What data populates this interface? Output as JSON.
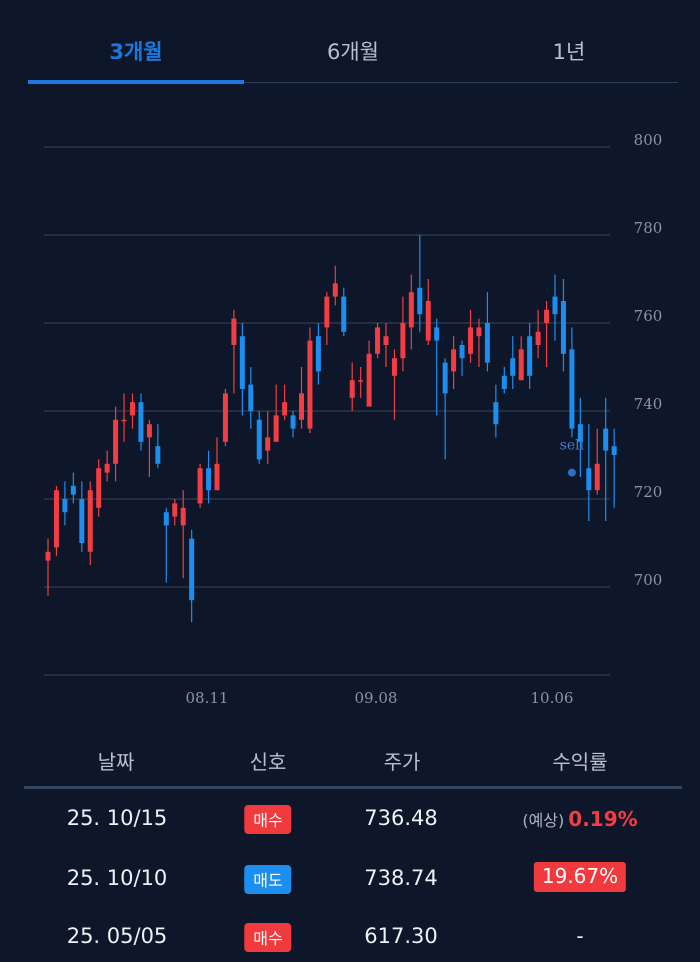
{
  "tabs": [
    {
      "label": "3개월",
      "active": true
    },
    {
      "label": "6개월",
      "active": false
    },
    {
      "label": "1년",
      "active": false
    }
  ],
  "colors": {
    "up": "#f23d44",
    "down": "#1b8ef0",
    "accent": "#1a78e0",
    "background": "#0e1729"
  },
  "chart_data": {
    "type": "candlestick",
    "ylim": [
      680,
      800
    ],
    "y_ticks": [
      "700",
      "720",
      "740",
      "760",
      "780",
      "800"
    ],
    "x_ticks": [
      "08.11",
      "09.08",
      "10.06"
    ],
    "grid": true,
    "annotations": [
      {
        "text": "sell",
        "index": 62,
        "price": 726
      }
    ],
    "candles": [
      [
        706,
        708,
        698,
        711
      ],
      [
        709,
        722,
        707,
        723
      ],
      [
        720,
        717,
        714,
        724
      ],
      [
        723,
        721,
        719,
        726
      ],
      [
        720,
        710,
        708,
        724
      ],
      [
        708,
        722,
        705,
        724
      ],
      [
        718,
        727,
        716,
        729
      ],
      [
        726,
        728,
        724,
        731
      ],
      [
        728,
        738,
        724,
        741
      ],
      [
        738,
        738,
        733,
        744
      ],
      [
        739,
        742,
        736,
        744
      ],
      [
        742,
        733,
        731,
        744
      ],
      [
        734,
        737,
        725,
        738
      ],
      [
        732,
        728,
        727,
        737
      ],
      [
        717,
        714,
        701,
        718
      ],
      [
        716,
        719,
        714,
        720
      ],
      [
        714,
        718,
        702,
        722
      ],
      [
        711,
        697,
        692,
        713
      ],
      [
        719,
        727,
        718,
        728
      ],
      [
        727,
        722,
        719,
        731
      ],
      [
        722,
        728,
        722,
        734
      ],
      [
        733,
        744,
        732,
        745
      ],
      [
        755,
        761,
        744,
        763
      ],
      [
        757,
        745,
        739,
        760
      ],
      [
        746,
        740,
        736,
        750
      ],
      [
        738,
        729,
        728,
        740
      ],
      [
        731,
        734,
        728,
        740
      ],
      [
        733,
        739,
        733,
        746
      ],
      [
        739,
        742,
        738,
        746
      ],
      [
        739,
        736,
        734,
        740
      ],
      [
        738,
        744,
        736,
        750
      ],
      [
        736,
        756,
        735,
        759
      ],
      [
        757,
        749,
        746,
        760
      ],
      [
        759,
        766,
        755,
        767
      ],
      [
        766,
        769,
        764,
        773
      ],
      [
        766,
        758,
        757,
        768
      ],
      [
        743,
        747,
        740,
        751
      ],
      [
        747,
        747,
        743,
        750
      ],
      [
        741,
        753,
        741,
        756
      ],
      [
        753,
        759,
        752,
        760
      ],
      [
        755,
        757,
        750,
        760
      ],
      [
        748,
        752,
        738,
        754
      ],
      [
        752,
        760,
        749,
        766
      ],
      [
        759,
        767,
        754,
        771
      ],
      [
        768,
        762,
        758,
        780
      ],
      [
        756,
        765,
        755,
        770
      ],
      [
        759,
        756,
        739,
        761
      ],
      [
        751,
        744,
        729,
        752
      ],
      [
        749,
        754,
        745,
        757
      ],
      [
        755,
        752,
        748,
        756
      ],
      [
        753,
        759,
        751,
        763
      ],
      [
        757,
        759,
        750,
        761
      ],
      [
        760,
        751,
        749,
        767
      ],
      [
        742,
        737,
        734,
        746
      ],
      [
        748,
        745,
        744,
        750
      ],
      [
        752,
        748,
        745,
        757
      ],
      [
        747,
        754,
        747,
        757
      ],
      [
        757,
        748,
        745,
        760
      ],
      [
        755,
        758,
        752,
        763
      ],
      [
        760,
        763,
        750,
        765
      ],
      [
        766,
        762,
        756,
        771
      ],
      [
        765,
        753,
        749,
        770
      ],
      [
        754,
        736,
        734,
        759
      ],
      [
        737,
        733,
        725,
        743
      ],
      [
        727,
        722,
        715,
        737
      ],
      [
        722,
        728,
        721,
        736
      ],
      [
        736,
        731,
        715,
        743
      ],
      [
        732,
        730,
        718,
        736
      ]
    ]
  },
  "table": {
    "headers": [
      "날짜",
      "신호",
      "주가",
      "수익률"
    ],
    "rows": [
      {
        "date": "25. 10/15",
        "signal": "매수",
        "signal_type": "buy",
        "price": "736.48",
        "return_prefix": "(예상)",
        "return": "0.19%",
        "return_style": "estimate"
      },
      {
        "date": "25. 10/10",
        "signal": "매도",
        "signal_type": "sell",
        "price": "738.74",
        "return": "19.67%",
        "return_style": "boxed"
      },
      {
        "date": "25. 05/05",
        "signal": "매수",
        "signal_type": "buy",
        "price": "617.30",
        "return": "-",
        "return_style": "none"
      }
    ]
  }
}
